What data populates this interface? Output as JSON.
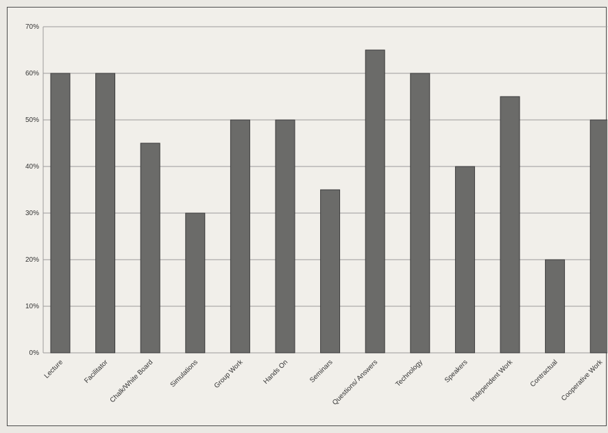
{
  "chart_data": {
    "type": "bar",
    "title": "",
    "xlabel": "",
    "ylabel": "",
    "ylim": [
      0,
      70
    ],
    "y_ticks": [
      "0%",
      "10%",
      "20%",
      "30%",
      "40%",
      "50%",
      "60%",
      "70%"
    ],
    "y_tick_values": [
      0,
      10,
      20,
      30,
      40,
      50,
      60,
      70
    ],
    "grid": true,
    "legend": "none",
    "bar_color": "#6b6b69",
    "categories": [
      "Lecture",
      "Facilitator",
      "Chalk/White Board",
      "Simulations",
      "Group Work",
      "Hands On",
      "Seminars",
      "Questions/ Answers",
      "Technology",
      "Speakers",
      "Independent Work",
      "Contractual",
      "Cooperative Work"
    ],
    "values": [
      60,
      60,
      45,
      30,
      50,
      50,
      35,
      65,
      60,
      40,
      55,
      20,
      50
    ]
  }
}
